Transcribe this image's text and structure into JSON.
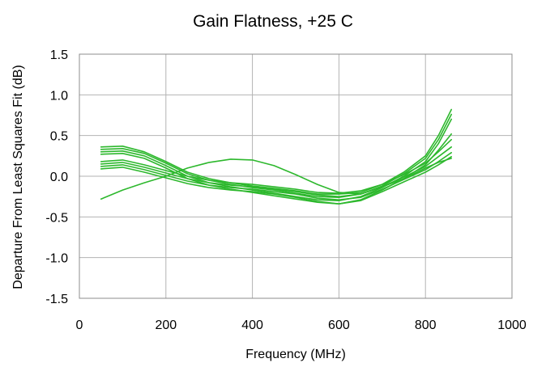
{
  "chart_data": {
    "type": "line",
    "title": "Gain Flatness, +25 C",
    "xlabel": "Frequency (MHz)",
    "ylabel": "Departure From Least Squares Fit (dB)",
    "xlim": [
      0,
      1000
    ],
    "ylim": [
      -1.5,
      1.5
    ],
    "xticks": [
      0,
      200,
      400,
      600,
      800,
      1000
    ],
    "xtick_labels": [
      "0",
      "200",
      "400",
      "600",
      "800",
      "1000"
    ],
    "yticks": [
      -1.5,
      -1.0,
      -0.5,
      0.0,
      0.5,
      1.0,
      1.5
    ],
    "ytick_labels": [
      "-1.5",
      "-1.0",
      "-0.5",
      "0.0",
      "0.5",
      "1.0",
      "1.5"
    ],
    "grid": true,
    "legend": "none",
    "line_color": "#2db82d",
    "x": [
      50,
      100,
      150,
      200,
      250,
      300,
      350,
      400,
      450,
      500,
      550,
      600,
      650,
      700,
      750,
      800,
      830,
      860
    ],
    "series": [
      {
        "values": [
          0.36,
          0.37,
          0.3,
          0.18,
          0.05,
          -0.03,
          -0.08,
          -0.12,
          -0.15,
          -0.18,
          -0.22,
          -0.22,
          -0.2,
          -0.1,
          0.05,
          0.25,
          0.5,
          0.82
        ]
      },
      {
        "values": [
          0.33,
          0.34,
          0.28,
          0.16,
          0.03,
          -0.05,
          -0.1,
          -0.14,
          -0.17,
          -0.21,
          -0.25,
          -0.26,
          -0.22,
          -0.12,
          0.03,
          0.22,
          0.45,
          0.76
        ]
      },
      {
        "values": [
          0.3,
          0.31,
          0.25,
          0.13,
          0.0,
          -0.08,
          -0.13,
          -0.17,
          -0.21,
          -0.25,
          -0.29,
          -0.3,
          -0.25,
          -0.14,
          0.0,
          0.18,
          0.4,
          0.7
        ]
      },
      {
        "values": [
          0.27,
          0.28,
          0.22,
          0.1,
          -0.03,
          -0.11,
          -0.16,
          -0.2,
          -0.24,
          -0.28,
          -0.32,
          -0.34,
          -0.29,
          -0.17,
          -0.03,
          0.14,
          0.32,
          0.52
        ]
      },
      {
        "values": [
          0.18,
          0.2,
          0.14,
          0.07,
          0.0,
          -0.05,
          -0.08,
          -0.1,
          -0.13,
          -0.16,
          -0.2,
          -0.21,
          -0.18,
          -0.1,
          0.02,
          0.16,
          0.3,
          0.45
        ]
      },
      {
        "values": [
          0.15,
          0.17,
          0.11,
          0.04,
          -0.03,
          -0.08,
          -0.11,
          -0.13,
          -0.16,
          -0.19,
          -0.23,
          -0.25,
          -0.22,
          -0.13,
          -0.01,
          0.12,
          0.24,
          0.36
        ]
      },
      {
        "values": [
          0.12,
          0.14,
          0.08,
          0.01,
          -0.06,
          -0.11,
          -0.14,
          -0.16,
          -0.19,
          -0.22,
          -0.27,
          -0.29,
          -0.26,
          -0.16,
          -0.04,
          0.08,
          0.18,
          0.29
        ]
      },
      {
        "values": [
          0.09,
          0.11,
          0.05,
          -0.02,
          -0.09,
          -0.14,
          -0.17,
          -0.19,
          -0.22,
          -0.26,
          -0.31,
          -0.34,
          -0.3,
          -0.19,
          -0.07,
          0.05,
          0.14,
          0.24
        ]
      },
      {
        "values": [
          -0.28,
          -0.17,
          -0.08,
          0.0,
          0.1,
          0.17,
          0.21,
          0.2,
          0.13,
          0.02,
          -0.1,
          -0.2,
          -0.22,
          -0.13,
          -0.03,
          0.1,
          0.17,
          0.22
        ]
      }
    ]
  }
}
